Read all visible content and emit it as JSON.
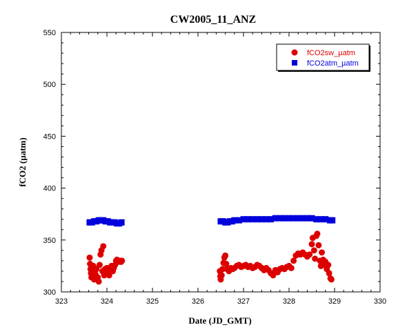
{
  "chart_data": {
    "type": "scatter",
    "title": "CW2005_11_ANZ",
    "xlabel": "Date (JD_GMT)",
    "ylabel": "fCO2 (µatm)",
    "xlim": [
      323,
      330
    ],
    "ylim": [
      300,
      550
    ],
    "xticks": [
      "323",
      "324",
      "325",
      "326",
      "327",
      "328",
      "329",
      "330"
    ],
    "yticks": [
      "300",
      "350",
      "400",
      "450",
      "500",
      "550"
    ],
    "grid": false,
    "legend_position": "top-right",
    "series": [
      {
        "name": "fCO2sw_µatm",
        "marker": "circle",
        "color": "#dd0000",
        "points": [
          [
            323.62,
            333
          ],
          [
            323.63,
            327
          ],
          [
            323.64,
            322
          ],
          [
            323.65,
            318
          ],
          [
            323.66,
            314
          ],
          [
            323.68,
            320
          ],
          [
            323.7,
            325
          ],
          [
            323.72,
            312
          ],
          [
            323.75,
            317
          ],
          [
            323.77,
            322
          ],
          [
            323.8,
            314
          ],
          [
            323.82,
            310
          ],
          [
            323.84,
            326
          ],
          [
            323.86,
            336
          ],
          [
            323.88,
            340
          ],
          [
            323.9,
            320
          ],
          [
            323.92,
            344
          ],
          [
            323.94,
            316
          ],
          [
            323.96,
            322
          ],
          [
            323.98,
            318
          ],
          [
            324.0,
            323
          ],
          [
            324.03,
            320
          ],
          [
            324.05,
            316
          ],
          [
            324.08,
            322
          ],
          [
            324.1,
            325
          ],
          [
            324.13,
            320
          ],
          [
            324.15,
            323
          ],
          [
            324.18,
            326
          ],
          [
            324.2,
            330
          ],
          [
            324.22,
            331
          ],
          [
            324.25,
            329
          ],
          [
            324.28,
            330
          ],
          [
            324.31,
            329
          ],
          [
            324.33,
            330
          ],
          [
            326.48,
            320
          ],
          [
            326.49,
            315
          ],
          [
            326.5,
            312
          ],
          [
            326.52,
            316
          ],
          [
            326.54,
            322
          ],
          [
            326.56,
            328
          ],
          [
            326.58,
            333
          ],
          [
            326.6,
            335
          ],
          [
            326.62,
            327
          ],
          [
            326.64,
            322
          ],
          [
            326.68,
            320
          ],
          [
            326.72,
            323
          ],
          [
            326.76,
            322
          ],
          [
            326.8,
            323
          ],
          [
            326.85,
            325
          ],
          [
            326.9,
            326
          ],
          [
            326.95,
            324
          ],
          [
            327.0,
            325
          ],
          [
            327.05,
            326
          ],
          [
            327.1,
            324
          ],
          [
            327.15,
            325
          ],
          [
            327.2,
            323
          ],
          [
            327.25,
            324
          ],
          [
            327.3,
            326
          ],
          [
            327.35,
            325
          ],
          [
            327.4,
            323
          ],
          [
            327.45,
            321
          ],
          [
            327.5,
            323
          ],
          [
            327.55,
            321
          ],
          [
            327.6,
            318
          ],
          [
            327.65,
            316
          ],
          [
            327.7,
            321
          ],
          [
            327.75,
            319
          ],
          [
            327.8,
            322
          ],
          [
            327.85,
            323
          ],
          [
            327.9,
            322
          ],
          [
            327.95,
            324
          ],
          [
            328.0,
            325
          ],
          [
            328.05,
            323
          ],
          [
            328.1,
            330
          ],
          [
            328.15,
            335
          ],
          [
            328.2,
            337
          ],
          [
            328.25,
            336
          ],
          [
            328.3,
            338
          ],
          [
            328.35,
            336
          ],
          [
            328.4,
            334
          ],
          [
            328.45,
            336
          ],
          [
            328.5,
            346
          ],
          [
            328.52,
            352
          ],
          [
            328.55,
            340
          ],
          [
            328.57,
            332
          ],
          [
            328.6,
            354
          ],
          [
            328.62,
            356
          ],
          [
            328.65,
            345
          ],
          [
            328.68,
            330
          ],
          [
            328.7,
            325
          ],
          [
            328.72,
            338
          ],
          [
            328.75,
            331
          ],
          [
            328.78,
            326
          ],
          [
            328.8,
            329
          ],
          [
            328.83,
            322
          ],
          [
            328.86,
            326
          ],
          [
            328.88,
            318
          ],
          [
            328.91,
            313
          ],
          [
            328.93,
            312
          ]
        ]
      },
      {
        "name": "fCO2atm_µatm",
        "marker": "square",
        "color": "#0000dd",
        "points": [
          [
            323.62,
            367
          ],
          [
            323.67,
            367
          ],
          [
            323.72,
            368
          ],
          [
            323.77,
            368
          ],
          [
            323.82,
            369
          ],
          [
            323.87,
            369
          ],
          [
            323.92,
            369
          ],
          [
            323.97,
            368
          ],
          [
            324.02,
            368
          ],
          [
            324.07,
            367
          ],
          [
            324.12,
            367
          ],
          [
            324.17,
            367
          ],
          [
            324.22,
            366
          ],
          [
            324.27,
            366
          ],
          [
            324.32,
            367
          ],
          [
            326.5,
            368
          ],
          [
            326.55,
            368
          ],
          [
            326.6,
            367
          ],
          [
            326.65,
            367
          ],
          [
            326.7,
            368
          ],
          [
            326.75,
            368
          ],
          [
            326.8,
            369
          ],
          [
            326.9,
            369
          ],
          [
            327.0,
            370
          ],
          [
            327.1,
            370
          ],
          [
            327.2,
            370
          ],
          [
            327.3,
            370
          ],
          [
            327.4,
            370
          ],
          [
            327.5,
            370
          ],
          [
            327.6,
            370
          ],
          [
            327.7,
            371
          ],
          [
            327.8,
            371
          ],
          [
            327.9,
            371
          ],
          [
            328.0,
            371
          ],
          [
            328.1,
            371
          ],
          [
            328.2,
            371
          ],
          [
            328.3,
            371
          ],
          [
            328.4,
            371
          ],
          [
            328.5,
            371
          ],
          [
            328.6,
            370
          ],
          [
            328.7,
            370
          ],
          [
            328.8,
            370
          ],
          [
            328.9,
            369
          ],
          [
            328.95,
            369
          ]
        ]
      }
    ]
  }
}
